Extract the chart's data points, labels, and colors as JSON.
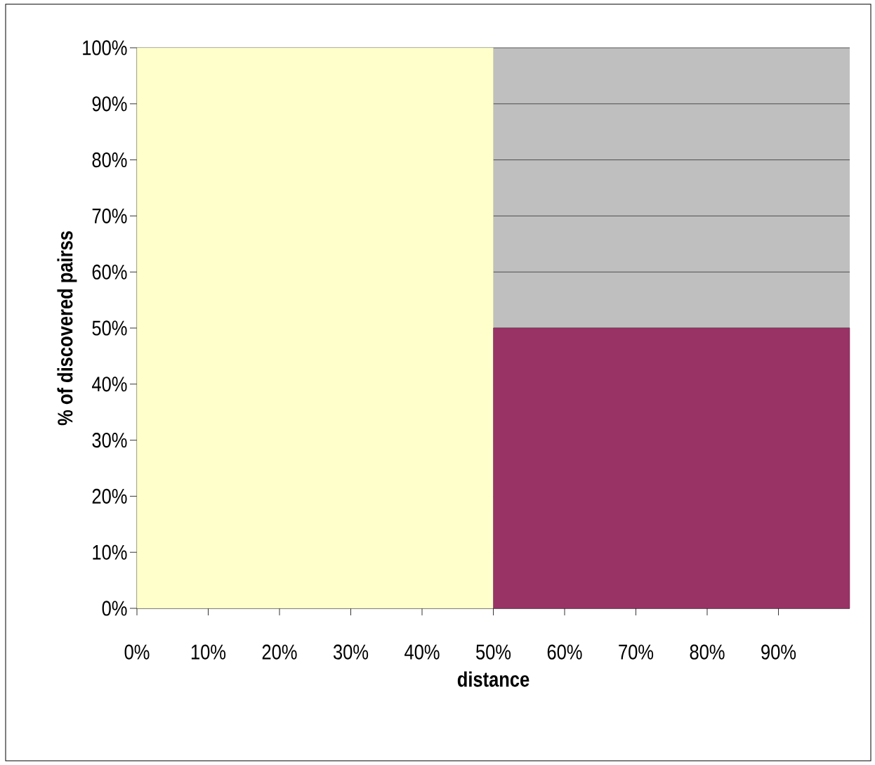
{
  "chart_data": {
    "type": "histogram",
    "xlabel": "distance",
    "ylabel": "% of discovered pairss",
    "bins": [
      0,
      50,
      100
    ],
    "values": [
      100,
      50
    ],
    "colors": [
      "#ffffcc",
      "#993366"
    ],
    "xlim": [
      0,
      100
    ],
    "ylim": [
      0,
      100
    ],
    "xticks": [
      {
        "value": 0,
        "label": "0%"
      },
      {
        "value": 10,
        "label": "10%"
      },
      {
        "value": 20,
        "label": "20%"
      },
      {
        "value": 30,
        "label": "30%"
      },
      {
        "value": 40,
        "label": "40%"
      },
      {
        "value": 50,
        "label": "50%"
      },
      {
        "value": 60,
        "label": "60%"
      },
      {
        "value": 70,
        "label": "70%"
      },
      {
        "value": 80,
        "label": "80%"
      },
      {
        "value": 90,
        "label": "90%"
      }
    ],
    "yticks": [
      {
        "value": 0,
        "label": "0%"
      },
      {
        "value": 10,
        "label": "10%"
      },
      {
        "value": 20,
        "label": "20%"
      },
      {
        "value": 30,
        "label": "30%"
      },
      {
        "value": 40,
        "label": "40%"
      },
      {
        "value": 50,
        "label": "50%"
      },
      {
        "value": 60,
        "label": "60%"
      },
      {
        "value": 70,
        "label": "70%"
      },
      {
        "value": 80,
        "label": "80%"
      },
      {
        "value": 90,
        "label": "90%"
      },
      {
        "value": 100,
        "label": "100%"
      }
    ],
    "grid": "y"
  }
}
